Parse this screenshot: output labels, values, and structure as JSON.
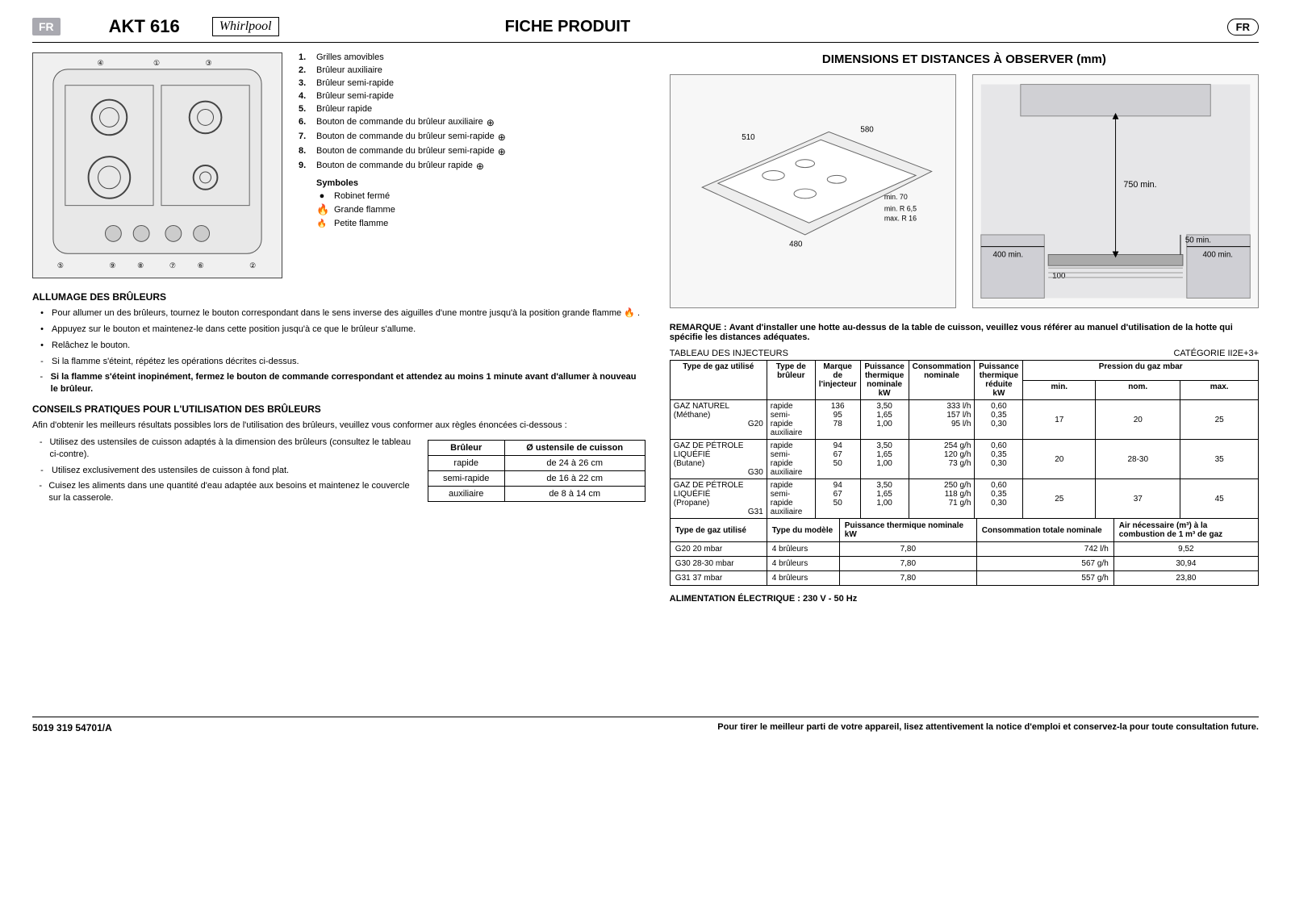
{
  "header": {
    "lang_badge": "FR",
    "model": "AKT 616",
    "brand": "Whirlpool",
    "doc_title": "FICHE PRODUIT",
    "lang_badge_right": "FR"
  },
  "parts": {
    "items": [
      {
        "n": "1.",
        "label": "Grilles amovibles"
      },
      {
        "n": "2.",
        "label": "Brûleur auxiliaire"
      },
      {
        "n": "3.",
        "label": "Brûleur semi-rapide"
      },
      {
        "n": "4.",
        "label": "Brûleur semi-rapide"
      },
      {
        "n": "5.",
        "label": "Brûleur rapide"
      },
      {
        "n": "6.",
        "label": "Bouton de commande du brûleur auxiliaire"
      },
      {
        "n": "7.",
        "label": "Bouton de commande du brûleur semi-rapide"
      },
      {
        "n": "8.",
        "label": "Bouton de commande du brûleur semi-rapide"
      },
      {
        "n": "9.",
        "label": "Bouton de commande du brûleur rapide"
      }
    ],
    "symbols_title": "Symboles",
    "symbols": [
      {
        "icon": "●",
        "label": "Robinet fermé"
      },
      {
        "icon": "🔥",
        "label": "Grande flamme"
      },
      {
        "icon": "🔥",
        "label": "Petite flamme"
      }
    ]
  },
  "ignition": {
    "title": "ALLUMAGE DES BRÛLEURS",
    "bullets": [
      {
        "mark": "•",
        "text": "Pour allumer un des brûleurs, tournez le bouton correspondant dans le sens inverse des aiguilles d'une montre jusqu'à la position grande flamme  🔥 ."
      },
      {
        "mark": "•",
        "text": "Appuyez sur le bouton et maintenez-le dans cette position jusqu'à ce que le brûleur s'allume."
      },
      {
        "mark": "•",
        "text": "Relâchez le bouton."
      },
      {
        "mark": "-",
        "text": "Si la flamme s'éteint, répétez les opérations décrites ci-dessus."
      },
      {
        "mark": "-",
        "text": "Si la flamme s'éteint inopinément, fermez le bouton de commande correspondant et attendez au moins 1 minute avant d'allumer à nouveau le brûleur.",
        "bold": true
      }
    ]
  },
  "tips": {
    "title": "CONSEILS PRATIQUES POUR L'UTILISATION DES BRÛLEURS",
    "intro": "Afin d'obtenir les meilleurs résultats possibles lors de l'utilisation des brûleurs, veuillez vous conformer aux règles énoncées ci-dessous :",
    "items": [
      {
        "mark": "-",
        "text": "Utilisez des ustensiles de cuisson adaptés à la dimension des brûleurs (consultez le tableau ci-contre)."
      },
      {
        "mark": "-",
        "text": "Utilisez exclusivement des ustensiles de cuisson à fond plat."
      },
      {
        "mark": "-",
        "text": "Cuisez les aliments dans une quantité d'eau adaptée aux besoins et maintenez le couvercle sur la casserole."
      }
    ],
    "table": {
      "headers": [
        "Brûleur",
        "Ø ustensile de cuisson"
      ],
      "rows": [
        [
          "rapide",
          "de 24 à 26 cm"
        ],
        [
          "semi-rapide",
          "de 16 à 22 cm"
        ],
        [
          "auxiliaire",
          "de 8 à 14 cm"
        ]
      ]
    }
  },
  "dimensions": {
    "title": "DIMENSIONS ET DISTANCES À OBSERVER (mm)",
    "fig1_labels": {
      "w": "580",
      "d": "510",
      "cutout": "480",
      "min_r": "min. R 6,5",
      "max_r": "max. R 16",
      "gap": "min. 70"
    },
    "fig2_labels": {
      "top": "750 min.",
      "clear": "50 min.",
      "sideL": "400 min.",
      "sideR": "400 min.",
      "base": "100"
    }
  },
  "remark": {
    "label": "REMARQUE :",
    "text": "Avant d'installer une hotte au-dessus de la table de cuisson, veuillez vous référer au manuel d'utilisation de la hotte qui spécifie les distances adéquates."
  },
  "injectors": {
    "caption_left": "TABLEAU DES INJECTEURS",
    "caption_right": "CATÉGORIE II2E+3+",
    "headers": {
      "gas_type": "Type de gaz utilisé",
      "burner": "Type de brûleur",
      "mark": "Marque de l'injecteur",
      "power_nom": "Puissance thermique nominale kW",
      "cons_nom": "Consommation nominale",
      "power_red": "Puissance thermique réduite kW",
      "pressure": "Pression du gaz mbar",
      "min": "min.",
      "nom": "nom.",
      "max": "max."
    },
    "rows": [
      {
        "gas": "GAZ NATUREL",
        "sub": "(Méthane)",
        "code": "G20",
        "burners": [
          "rapide",
          "semi-rapide",
          "auxiliaire"
        ],
        "mark": [
          "136",
          "95",
          "78"
        ],
        "pnom": [
          "3,50",
          "1,65",
          "1,00"
        ],
        "cons": [
          "333 l/h",
          "157 l/h",
          "95 l/h"
        ],
        "pred": [
          "0,60",
          "0,35",
          "0,30"
        ],
        "pmin": "17",
        "pnomv": "20",
        "pmax": "25"
      },
      {
        "gas": "GAZ DE PÉTROLE LIQUÉFIÉ",
        "sub": "(Butane)",
        "code": "G30",
        "burners": [
          "rapide",
          "semi-rapide",
          "auxiliaire"
        ],
        "mark": [
          "94",
          "67",
          "50"
        ],
        "pnom": [
          "3,50",
          "1,65",
          "1,00"
        ],
        "cons": [
          "254 g/h",
          "120 g/h",
          "73 g/h"
        ],
        "pred": [
          "0,60",
          "0,35",
          "0,30"
        ],
        "pmin": "20",
        "pnomv": "28-30",
        "pmax": "35"
      },
      {
        "gas": "GAZ DE PÉTROLE LIQUÉFIÉ",
        "sub": "(Propane)",
        "code": "G31",
        "burners": [
          "rapide",
          "semi-rapide",
          "auxiliaire"
        ],
        "mark": [
          "94",
          "67",
          "50"
        ],
        "pnom": [
          "3,50",
          "1,65",
          "1,00"
        ],
        "cons": [
          "250 g/h",
          "118 g/h",
          "71 g/h"
        ],
        "pred": [
          "0,60",
          "0,35",
          "0,30"
        ],
        "pmin": "25",
        "pnomv": "37",
        "pmax": "45"
      }
    ]
  },
  "summary": {
    "headers": {
      "gas": "Type de gaz utilisé",
      "model": "Type du modèle",
      "power": "Puissance thermique nominale kW",
      "cons": "Consommation totale nominale",
      "air": "Air nécessaire (m³) à la combustion de 1 m³ de gaz"
    },
    "rows": [
      {
        "gas": "G20 20 mbar",
        "model": "4 brûleurs",
        "power": "7,80",
        "cons": "742 l/h",
        "air": "9,52"
      },
      {
        "gas": "G30 28-30 mbar",
        "model": "4 brûleurs",
        "power": "7,80",
        "cons": "567 g/h",
        "air": "30,94"
      },
      {
        "gas": "G31 37 mbar",
        "model": "4 brûleurs",
        "power": "7,80",
        "cons": "557 g/h",
        "air": "23,80"
      }
    ]
  },
  "electrical": "ALIMENTATION ÉLECTRIQUE : 230 V - 50 Hz",
  "footer": {
    "ref": "5019 319 54701/A",
    "note": "Pour tirer le meilleur parti de votre appareil, lisez attentivement la notice d'emploi et conservez-la pour toute consultation future."
  }
}
